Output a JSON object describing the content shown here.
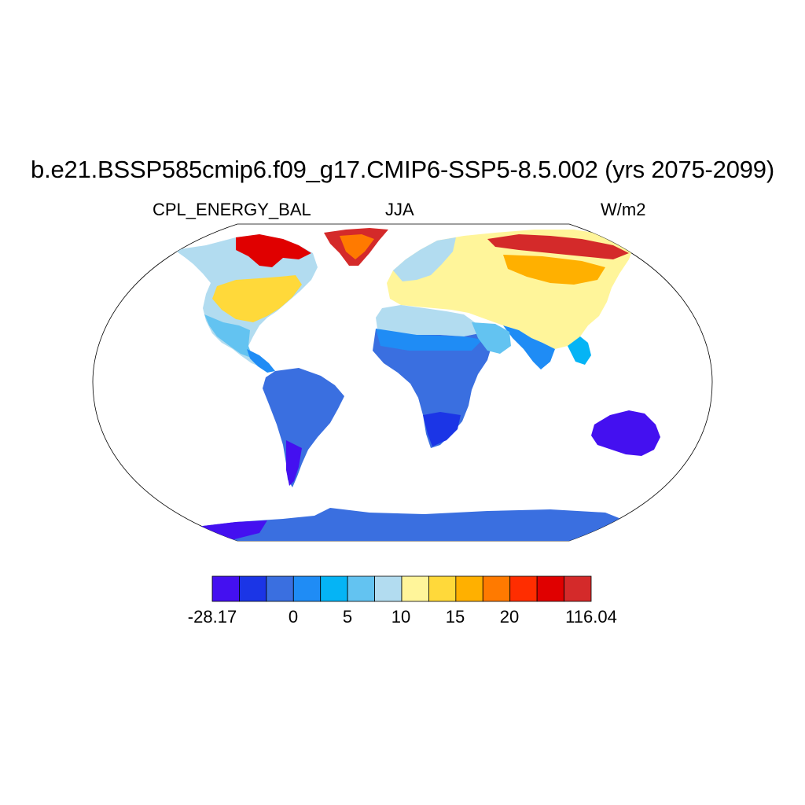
{
  "figure": {
    "title": "b.e21.BSSP585cmip6.f09_g17.CMIP6-SSP5-8.5.002 (yrs 2075-2099)",
    "variable": "CPL_ENERGY_BAL",
    "season": "JJA",
    "units": "W/m2",
    "projection": "Robinson"
  },
  "colorbar": {
    "colors": [
      "#4410f0",
      "#1b35e6",
      "#3a6fe0",
      "#1f8cf5",
      "#05b4f5",
      "#63c3f1",
      "#b2dcf0",
      "#fff59a",
      "#ffd93a",
      "#ffb000",
      "#ff7a00",
      "#ff2d00",
      "#e00000",
      "#d42a2a"
    ],
    "labels": [
      "-28.17",
      "0",
      "5",
      "10",
      "15",
      "20",
      "116.04"
    ]
  },
  "chart_data": {
    "type": "heatmap",
    "title": "b.e21.BSSP585cmip6.f09_g17.CMIP6-SSP5-8.5.002 (yrs 2075-2099)",
    "left_subtitle": "CPL_ENERGY_BAL",
    "center_subtitle": "JJA",
    "right_subtitle": "W/m2",
    "value_range": [
      -28.17,
      116.04
    ],
    "contour_levels": [
      -5,
      0,
      2.5,
      5,
      7.5,
      10,
      12.5,
      15,
      17.5,
      20,
      22.5,
      25
    ]
  }
}
